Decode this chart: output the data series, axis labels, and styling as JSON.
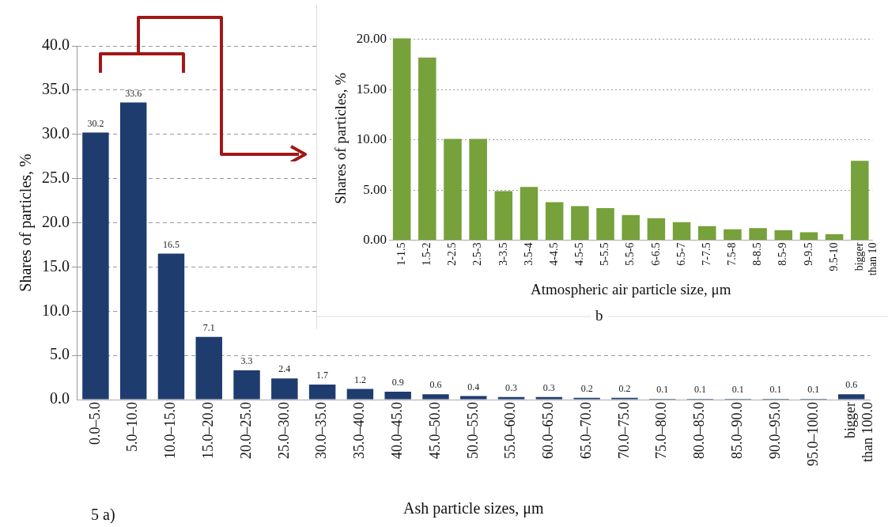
{
  "chart_data": [
    {
      "type": "bar",
      "xlabel": "Ash particle sizes, μm",
      "ylabel": "Shares of particles, %",
      "color": "#1f3c6e",
      "grid": "y",
      "data_labels": true,
      "categories": [
        "0.0–5.0",
        "5.0–10.0",
        "10.0–15.0",
        "15.0–20.0",
        "20.0–25.0",
        "25.0–30.0",
        "30.0–35.0",
        "35.0–40.0",
        "40.0–45.0",
        "45.0–50.0",
        "50.0–55.0",
        "55.0–60.0",
        "60.0–65.0",
        "65.0–70.0",
        "70.0–75.0",
        "75.0–80.0",
        "80.0–85.0",
        "85.0–90.0",
        "90.0–95.0",
        "95.0–100.0",
        "bigger than 100.0"
      ],
      "values": [
        30.2,
        33.6,
        16.5,
        7.1,
        3.3,
        2.4,
        1.7,
        1.2,
        0.9,
        0.6,
        0.4,
        0.3,
        0.3,
        0.2,
        0.2,
        0.1,
        0.1,
        0.1,
        0.1,
        0.1,
        0.6
      ],
      "ylim": [
        0,
        40
      ],
      "yticks": [
        {
          "value": 0,
          "label": "0.0"
        },
        {
          "value": 5,
          "label": "5.0"
        },
        {
          "value": 10,
          "label": "10.0"
        },
        {
          "value": 15,
          "label": "15.0"
        },
        {
          "value": 20,
          "label": "20.0"
        },
        {
          "value": 25,
          "label": "25.0"
        },
        {
          "value": 30,
          "label": "30.0"
        },
        {
          "value": 35,
          "label": "35.0"
        },
        {
          "value": 40,
          "label": "40.0"
        }
      ],
      "annotations": [
        "5 a)"
      ]
    },
    {
      "type": "bar",
      "xlabel": "Atmospheric air particle size, μm",
      "ylabel": "Shares of particles, %",
      "color": "#77a13a",
      "grid": "y",
      "categories": [
        "1-1.5",
        "1.5-2",
        "2-2.5",
        "2.5-3",
        "3-3.5",
        "3.5-4",
        "4-4.5",
        "4.5-5",
        "5-5.5",
        "5.5-6",
        "6-6.5",
        "6.5-7",
        "7-7.5",
        "7.5-8",
        "8-8.5",
        "8.5-9",
        "9-9.5",
        "9.5-10",
        "bigger than 10"
      ],
      "values": [
        20.1,
        18.2,
        10.1,
        10.1,
        4.9,
        5.3,
        3.8,
        3.4,
        3.2,
        2.5,
        2.2,
        1.8,
        1.4,
        1.1,
        1.2,
        1.0,
        0.8,
        0.6,
        7.9
      ],
      "ylim": [
        0,
        20.3
      ],
      "yticks": [
        {
          "value": 0,
          "label": "0.00"
        },
        {
          "value": 5,
          "label": "5.00"
        },
        {
          "value": 10,
          "label": "10.00"
        },
        {
          "value": 15,
          "label": "15.00"
        },
        {
          "value": 20,
          "label": "20.00"
        }
      ],
      "annotations": [
        "b"
      ]
    }
  ]
}
